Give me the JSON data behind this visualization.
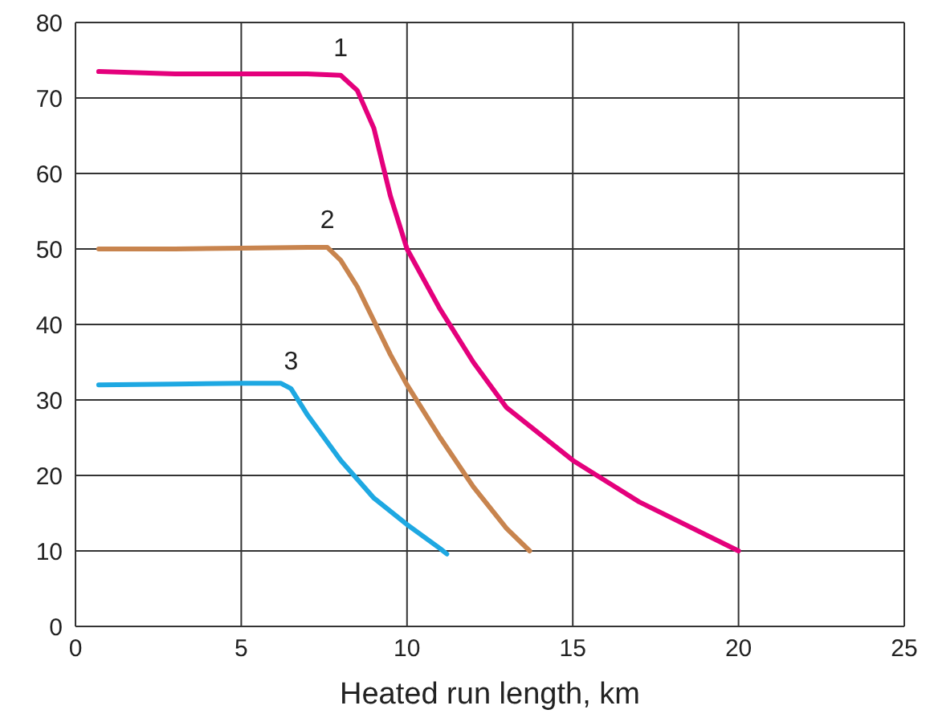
{
  "chart_data": {
    "type": "line",
    "xlabel": "Heated run length, km",
    "xlim": [
      0,
      25
    ],
    "xticks": [
      0,
      5,
      10,
      15,
      20,
      25
    ],
    "ylim": [
      0,
      80
    ],
    "yticks": [
      0,
      10,
      20,
      30,
      40,
      50,
      60,
      70,
      80
    ],
    "grid": true,
    "marker": "none",
    "line_style": "solid",
    "series": [
      {
        "name": "1",
        "color": "#e4007c",
        "x": [
          0.7,
          3,
          5,
          7,
          8,
          8.5,
          9,
          9.5,
          10,
          11,
          12,
          13,
          15,
          17,
          20
        ],
        "values": [
          73.5,
          73.2,
          73.2,
          73.2,
          73,
          71,
          66,
          57,
          50,
          42,
          35,
          29,
          22,
          16.5,
          10
        ]
      },
      {
        "name": "2",
        "color": "#c8844e",
        "x": [
          0.7,
          3,
          5,
          7,
          7.6,
          8,
          8.5,
          9.5,
          10,
          11,
          12,
          13,
          13.7
        ],
        "values": [
          50,
          50,
          50.1,
          50.2,
          50.2,
          48.5,
          45,
          36,
          32,
          25,
          18.5,
          13,
          10
        ]
      },
      {
        "name": "3",
        "color": "#1ea8e2",
        "x": [
          0.7,
          3,
          5,
          6.2,
          6.5,
          7,
          8,
          9,
          10,
          11,
          11.2
        ],
        "values": [
          32,
          32.1,
          32.2,
          32.2,
          31.5,
          28,
          22,
          17,
          13.5,
          10.3,
          9.6
        ]
      }
    ]
  }
}
